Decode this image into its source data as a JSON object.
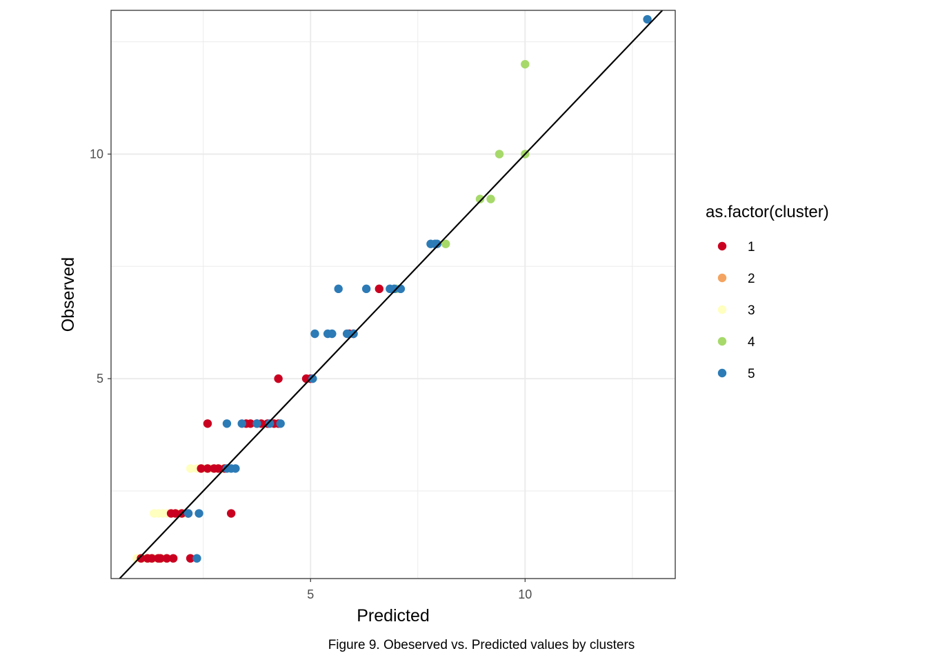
{
  "chart_data": {
    "type": "scatter",
    "title": "",
    "xlabel": "Predicted",
    "ylabel": "Observed",
    "caption": "Figure 9. Obeserved vs. Predicted values by clusters",
    "xlim": [
      0.35,
      13.5
    ],
    "ylim": [
      0.55,
      13.2
    ],
    "x_ticks": [
      5,
      10
    ],
    "y_ticks": [
      5,
      10
    ],
    "x_tick_labels": [
      "5",
      "10"
    ],
    "y_tick_labels": [
      "5",
      "10"
    ],
    "grid": true,
    "reference_line": "y = x",
    "legend": {
      "title": "as.factor(cluster)",
      "placement": "right",
      "entries": [
        {
          "label": "1",
          "color": "#CA0020"
        },
        {
          "label": "2",
          "color": "#F4A460"
        },
        {
          "label": "3",
          "color": "#FFFFBF"
        },
        {
          "label": "4",
          "color": "#A6D96A"
        },
        {
          "label": "5",
          "color": "#2C7BB6"
        }
      ]
    },
    "series": [
      {
        "name": "3",
        "color": "#FFFFBF",
        "points": [
          [
            0.95,
            1
          ],
          [
            1.1,
            1
          ],
          [
            1.2,
            1
          ],
          [
            1.25,
            1
          ],
          [
            1.35,
            1
          ],
          [
            1.45,
            1
          ],
          [
            1.55,
            1
          ],
          [
            1.35,
            2
          ],
          [
            1.45,
            2
          ],
          [
            1.55,
            2
          ],
          [
            1.65,
            2
          ],
          [
            1.85,
            2
          ],
          [
            1.95,
            2
          ],
          [
            2.05,
            2
          ],
          [
            2.2,
            3
          ],
          [
            2.35,
            3
          ],
          [
            2.5,
            3
          ],
          [
            2.65,
            3
          ],
          [
            2.8,
            3
          ],
          [
            2.95,
            3
          ],
          [
            3.1,
            3
          ]
        ]
      },
      {
        "name": "1",
        "color": "#CA0020",
        "points": [
          [
            1.05,
            1
          ],
          [
            1.2,
            1
          ],
          [
            1.3,
            1
          ],
          [
            1.45,
            1
          ],
          [
            1.5,
            1
          ],
          [
            1.65,
            1
          ],
          [
            1.8,
            1
          ],
          [
            2.2,
            1
          ],
          [
            1.75,
            2
          ],
          [
            1.85,
            2
          ],
          [
            2.0,
            2
          ],
          [
            2.15,
            2
          ],
          [
            3.15,
            2
          ],
          [
            2.45,
            3
          ],
          [
            2.6,
            3
          ],
          [
            2.75,
            3
          ],
          [
            2.85,
            3
          ],
          [
            3.0,
            3
          ],
          [
            2.6,
            4
          ],
          [
            3.5,
            4
          ],
          [
            3.6,
            4
          ],
          [
            3.75,
            4
          ],
          [
            3.85,
            4
          ],
          [
            4.0,
            4
          ],
          [
            4.15,
            4
          ],
          [
            4.25,
            4
          ],
          [
            4.25,
            5
          ],
          [
            4.9,
            5
          ],
          [
            5.0,
            5
          ],
          [
            5.9,
            6
          ],
          [
            6.0,
            6
          ],
          [
            6.6,
            7
          ]
        ]
      },
      {
        "name": "4",
        "color": "#A6D96A",
        "points": [
          [
            7.0,
            7
          ],
          [
            8.15,
            8
          ],
          [
            8.95,
            9
          ],
          [
            9.2,
            9
          ],
          [
            9.4,
            10
          ],
          [
            10.0,
            10
          ],
          [
            10.0,
            12
          ]
        ]
      },
      {
        "name": "5",
        "color": "#2C7BB6",
        "points": [
          [
            2.35,
            1
          ],
          [
            2.15,
            2
          ],
          [
            2.4,
            2
          ],
          [
            3.05,
            3
          ],
          [
            3.15,
            3
          ],
          [
            3.25,
            3
          ],
          [
            3.05,
            4
          ],
          [
            3.4,
            4
          ],
          [
            3.75,
            4
          ],
          [
            4.05,
            4
          ],
          [
            4.3,
            4
          ],
          [
            5.05,
            5
          ],
          [
            5.1,
            6
          ],
          [
            5.4,
            6
          ],
          [
            5.5,
            6
          ],
          [
            5.85,
            6
          ],
          [
            6.0,
            6
          ],
          [
            5.65,
            7
          ],
          [
            6.3,
            7
          ],
          [
            6.85,
            7
          ],
          [
            6.95,
            7
          ],
          [
            7.1,
            7
          ],
          [
            7.8,
            8
          ],
          [
            7.9,
            8
          ],
          [
            7.95,
            8
          ],
          [
            12.85,
            13
          ]
        ]
      }
    ]
  }
}
